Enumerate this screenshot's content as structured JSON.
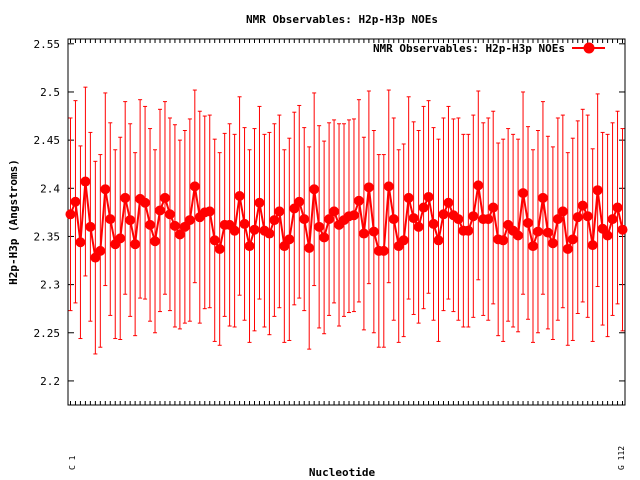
{
  "chart_data": {
    "type": "line",
    "title": "NMR Observables: H2p-H3p NOEs",
    "xlabel": "Nucleotide",
    "ylabel": "H2p-H3p (Angstroms)",
    "ylim": [
      2.175,
      2.555
    ],
    "yticks": [
      2.2,
      2.25,
      2.3,
      2.35,
      2.4,
      2.45,
      2.5,
      2.55
    ],
    "yticklabels": [
      "2.2",
      "2.25",
      "2.3",
      "2.35",
      "2.4",
      "2.45",
      "2.5",
      "2.55"
    ],
    "xlim": [
      0.5,
      112.5
    ],
    "grid": false,
    "legend": {
      "position": "top-right"
    },
    "xtick_first": "C 1",
    "xtick_last": "G 112",
    "series": [
      {
        "name": "NMR Observables: H2p-H3p NOEs",
        "color": "#ff0000",
        "marker": "circle",
        "x": [
          1,
          2,
          3,
          4,
          5,
          6,
          7,
          8,
          9,
          10,
          11,
          12,
          13,
          14,
          15,
          16,
          17,
          18,
          19,
          20,
          21,
          22,
          23,
          24,
          25,
          26,
          27,
          28,
          29,
          30,
          31,
          32,
          33,
          34,
          35,
          36,
          37,
          38,
          39,
          40,
          41,
          42,
          43,
          44,
          45,
          46,
          47,
          48,
          49,
          50,
          51,
          52,
          53,
          54,
          55,
          56,
          57,
          58,
          59,
          60,
          61,
          62,
          63,
          64,
          65,
          66,
          67,
          68,
          69,
          70,
          71,
          72,
          73,
          74,
          75,
          76,
          77,
          78,
          79,
          80,
          81,
          82,
          83,
          84,
          85,
          86,
          87,
          88,
          89,
          90,
          91,
          92,
          93,
          94,
          95,
          96,
          97,
          98,
          99,
          100,
          101,
          102,
          103,
          104,
          105,
          106,
          107,
          108,
          109,
          110,
          111,
          112
        ],
        "y": [
          2.373,
          2.386,
          2.344,
          2.407,
          2.36,
          2.328,
          2.335,
          2.399,
          2.368,
          2.342,
          2.348,
          2.39,
          2.367,
          2.342,
          2.389,
          2.385,
          2.362,
          2.345,
          2.377,
          2.39,
          2.373,
          2.361,
          2.352,
          2.36,
          2.367,
          2.402,
          2.37,
          2.375,
          2.376,
          2.346,
          2.337,
          2.362,
          2.362,
          2.356,
          2.392,
          2.363,
          2.34,
          2.357,
          2.385,
          2.356,
          2.353,
          2.367,
          2.376,
          2.34,
          2.347,
          2.379,
          2.386,
          2.368,
          2.338,
          2.399,
          2.36,
          2.349,
          2.368,
          2.376,
          2.362,
          2.367,
          2.371,
          2.372,
          2.387,
          2.353,
          2.401,
          2.355,
          2.335,
          2.335,
          2.402,
          2.368,
          2.34,
          2.346,
          2.39,
          2.369,
          2.36,
          2.38,
          2.391,
          2.363,
          2.346,
          2.373,
          2.385,
          2.372,
          2.368,
          2.356,
          2.356,
          2.371,
          2.403,
          2.368,
          2.368,
          2.38,
          2.347,
          2.346,
          2.362,
          2.356,
          2.351,
          2.395,
          2.364,
          2.34,
          2.355,
          2.39,
          2.354,
          2.343,
          2.368,
          2.376,
          2.337,
          2.347,
          2.37,
          2.382,
          2.371,
          2.341,
          2.398,
          2.358,
          2.351,
          2.368,
          2.38,
          2.357
        ],
        "err": [
          0.1,
          0.105,
          0.1,
          0.098,
          0.098,
          0.1,
          0.1,
          0.1,
          0.1,
          0.098,
          0.105,
          0.1,
          0.1,
          0.095,
          0.103,
          0.1,
          0.1,
          0.095,
          0.105,
          0.1,
          0.1,
          0.105,
          0.098,
          0.1,
          0.105,
          0.1,
          0.11,
          0.1,
          0.1,
          0.105,
          0.1,
          0.095,
          0.105,
          0.1,
          0.103,
          0.1,
          0.1,
          0.105,
          0.1,
          0.1,
          0.105,
          0.1,
          0.1,
          0.1,
          0.105,
          0.1,
          0.1,
          0.095,
          0.105,
          0.1,
          0.105,
          0.1,
          0.1,
          0.095,
          0.105,
          0.1,
          0.1,
          0.1,
          0.105,
          0.1,
          0.1,
          0.105,
          0.1,
          0.1,
          0.1,
          0.105,
          0.1,
          0.1,
          0.105,
          0.1,
          0.1,
          0.105,
          0.1,
          0.1,
          0.105,
          0.1,
          0.1,
          0.1,
          0.105,
          0.1,
          0.1,
          0.105,
          0.098,
          0.1,
          0.105,
          0.1,
          0.1,
          0.105,
          0.1,
          0.1,
          0.1,
          0.105,
          0.1,
          0.1,
          0.105,
          0.1,
          0.1,
          0.1,
          0.105,
          0.1,
          0.1,
          0.105,
          0.1,
          0.1,
          0.105,
          0.1,
          0.1,
          0.1,
          0.105,
          0.1,
          0.1,
          0.105
        ]
      }
    ]
  }
}
